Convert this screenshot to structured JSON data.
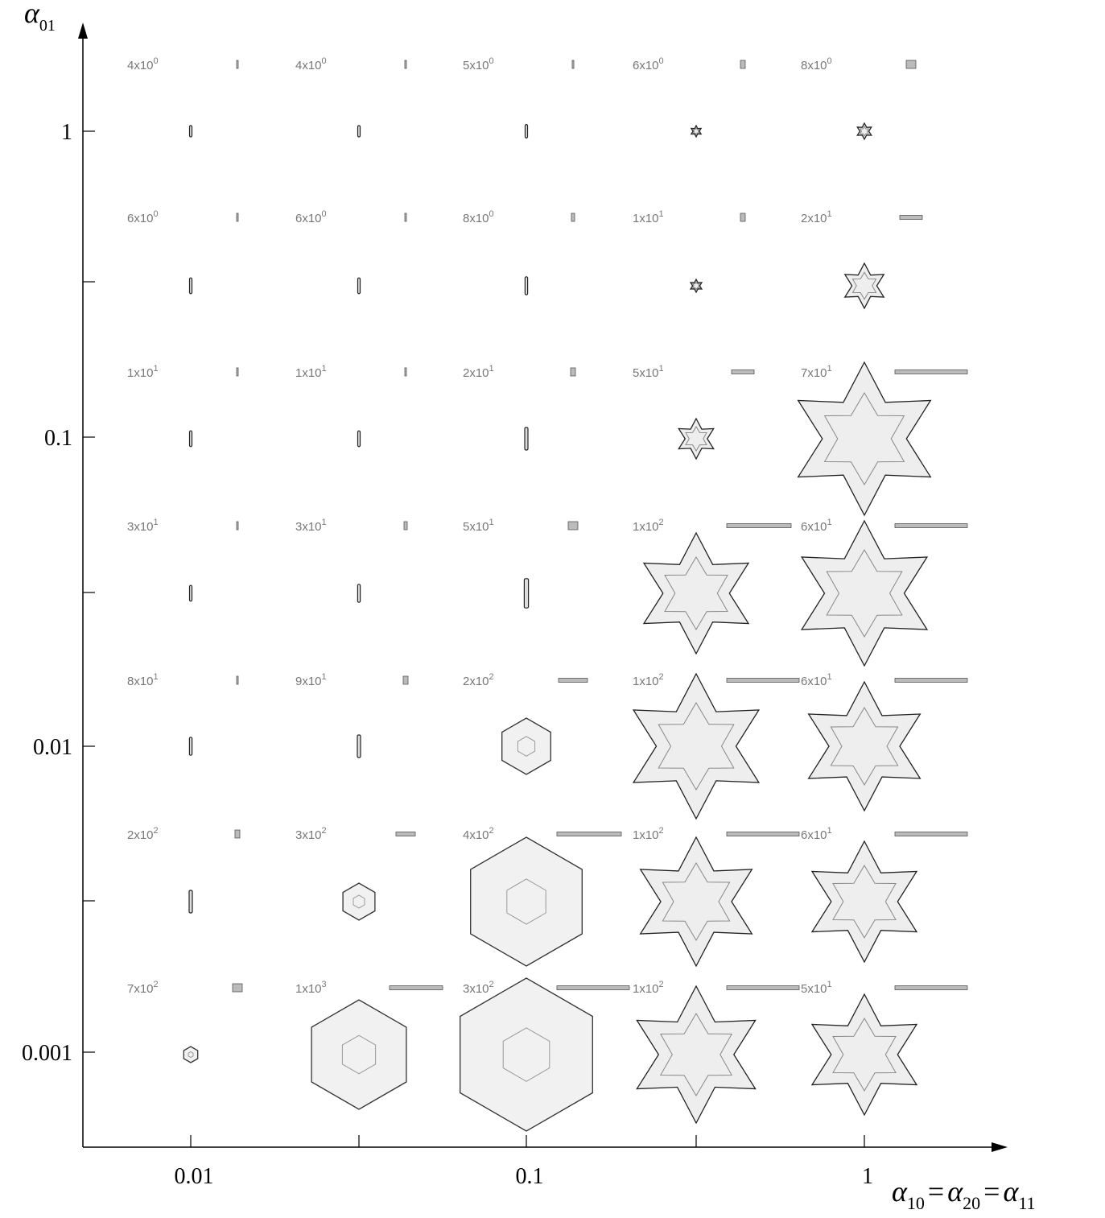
{
  "y_axis": {
    "symbol": "α",
    "subscript": "01",
    "ticks": [
      "1",
      "0.1",
      "0.01",
      "0.001"
    ]
  },
  "x_axis": {
    "terms": [
      {
        "symbol": "α",
        "subscript": "10"
      },
      {
        "symbol": "α",
        "subscript": "20"
      },
      {
        "symbol": "α",
        "subscript": "11"
      }
    ],
    "operator": "=",
    "ticks": [
      "0.01",
      "0.1",
      "1"
    ]
  },
  "cells": [
    [
      {
        "base": "4x10",
        "exponent": "0"
      },
      {
        "base": "4x10",
        "exponent": "0"
      },
      {
        "base": "5x10",
        "exponent": "0"
      },
      {
        "base": "6x10",
        "exponent": "0"
      },
      {
        "base": "8x10",
        "exponent": "0"
      }
    ],
    [
      {
        "base": "6x10",
        "exponent": "0"
      },
      {
        "base": "6x10",
        "exponent": "0"
      },
      {
        "base": "8x10",
        "exponent": "0"
      },
      {
        "base": "1x10",
        "exponent": "1"
      },
      {
        "base": "2x10",
        "exponent": "1"
      }
    ],
    [
      {
        "base": "1x10",
        "exponent": "1"
      },
      {
        "base": "1x10",
        "exponent": "1"
      },
      {
        "base": "2x10",
        "exponent": "1"
      },
      {
        "base": "5x10",
        "exponent": "1"
      },
      {
        "base": "7x10",
        "exponent": "1"
      }
    ],
    [
      {
        "base": "3x10",
        "exponent": "1"
      },
      {
        "base": "3x10",
        "exponent": "1"
      },
      {
        "base": "5x10",
        "exponent": "1"
      },
      {
        "base": "1x10",
        "exponent": "2"
      },
      {
        "base": "6x10",
        "exponent": "1"
      }
    ],
    [
      {
        "base": "8x10",
        "exponent": "1"
      },
      {
        "base": "9x10",
        "exponent": "1"
      },
      {
        "base": "2x10",
        "exponent": "2"
      },
      {
        "base": "1x10",
        "exponent": "2"
      },
      {
        "base": "6x10",
        "exponent": "1"
      }
    ],
    [
      {
        "base": "2x10",
        "exponent": "2"
      },
      {
        "base": "3x10",
        "exponent": "2"
      },
      {
        "base": "4x10",
        "exponent": "2"
      },
      {
        "base": "1x10",
        "exponent": "2"
      },
      {
        "base": "6x10",
        "exponent": "1"
      }
    ],
    [
      {
        "base": "7x10",
        "exponent": "2"
      },
      {
        "base": "1x10",
        "exponent": "3"
      },
      {
        "base": "3x10",
        "exponent": "2"
      },
      {
        "base": "1x10",
        "exponent": "2"
      },
      {
        "base": "5x10",
        "exponent": "1"
      }
    ]
  ]
}
